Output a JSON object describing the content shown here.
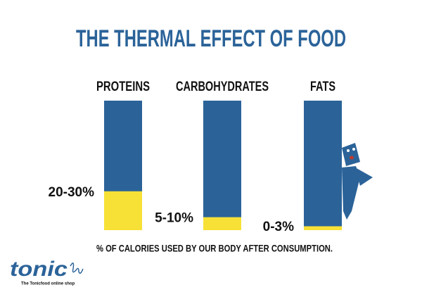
{
  "chart_data": {
    "type": "range-bar",
    "title": "THE THERMAL EFFECT OF FOOD",
    "categories": [
      "PROTEINS",
      "CARBOHYDRATES",
      "FATS"
    ],
    "values": [
      [
        20,
        30
      ],
      [
        5,
        10
      ],
      [
        0,
        3
      ]
    ],
    "value_labels": [
      "20-30%",
      "5-10%",
      "0-3%"
    ],
    "x_label": "% OF CALORIES USED BY OUR BODY AFTER CONSUMPTION.",
    "ylim": [
      0,
      100
    ],
    "color": "#f7e136",
    "background_color": "#2b6399",
    "logo": "tonic",
    "logo_tagline": "The Tonicfood online shop"
  }
}
